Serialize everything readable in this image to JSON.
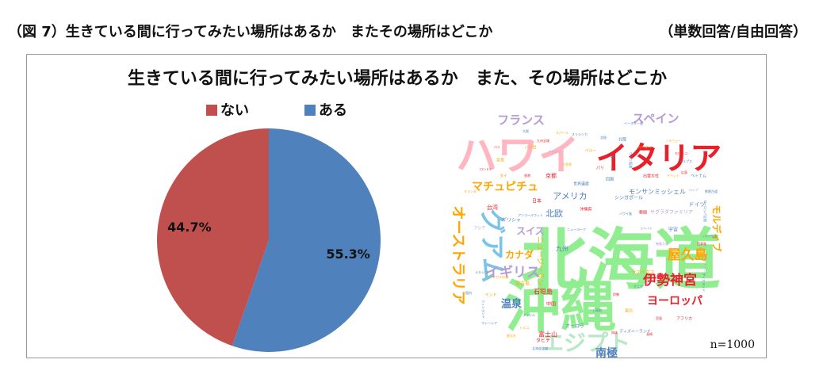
{
  "figure": {
    "caption": "（図 7）生きている間に行ってみたい場所はあるか　またその場所はどこか",
    "note": "（単数回答/自由回答）"
  },
  "chart_data": [
    {
      "type": "pie",
      "title": "生きている間に行ってみたい場所はあるか　また、その場所はどこか",
      "legend_position": "top",
      "slices": [
        {
          "label": "ない",
          "value": 44.7,
          "display": "44.7%",
          "color": "#C0504D"
        },
        {
          "label": "ある",
          "value": 55.3,
          "display": "55.3%",
          "color": "#4F81BD"
        }
      ],
      "start_direction": "12 o'clock",
      "order": "ある clockwise from top, then ない"
    },
    {
      "type": "wordcloud",
      "shape": "heart",
      "words": [
        {
          "text": "北海道",
          "weight": 100,
          "color": "#90EE90",
          "orient": "h"
        },
        {
          "text": "沖縄",
          "weight": 88,
          "color": "#90EE90",
          "orient": "h"
        },
        {
          "text": "ハワイ",
          "weight": 62,
          "color": "#FFB6C1",
          "orient": "h"
        },
        {
          "text": "イタリア",
          "weight": 50,
          "color": "#E8202A",
          "orient": "h"
        },
        {
          "text": "エジプト",
          "weight": 32,
          "color": "#B8E8C8",
          "orient": "h"
        },
        {
          "text": "グアム",
          "weight": 30,
          "color": "#7CC3E8",
          "orient": "v"
        },
        {
          "text": "オーストラリア",
          "weight": 18,
          "color": "#FFA500",
          "orient": "v"
        },
        {
          "text": "屋久島",
          "weight": 17,
          "color": "#FFA500",
          "orient": "h"
        },
        {
          "text": "伊勢神宮",
          "weight": 17,
          "color": "#E8202A",
          "orient": "h"
        },
        {
          "text": "イギリス",
          "weight": 17,
          "color": "#B59BD8",
          "orient": "h"
        },
        {
          "text": "フランス",
          "weight": 16,
          "color": "#B59BD8",
          "orient": "h"
        },
        {
          "text": "スペイン",
          "weight": 16,
          "color": "#B59BD8",
          "orient": "h"
        },
        {
          "text": "マチュピチュ",
          "weight": 15,
          "color": "#FFA500",
          "orient": "h"
        },
        {
          "text": "ヨーロッパ",
          "weight": 14,
          "color": "#E8202A",
          "orient": "h"
        },
        {
          "text": "南極",
          "weight": 14,
          "color": "#4F81BD",
          "orient": "h"
        },
        {
          "text": "温泉",
          "weight": 13,
          "color": "#4F81BD",
          "orient": "h"
        },
        {
          "text": "カナダ",
          "weight": 12,
          "color": "#FFA500",
          "orient": "h"
        },
        {
          "text": "スイス",
          "weight": 12,
          "color": "#B59BD8",
          "orient": "h"
        },
        {
          "text": "アメリカ",
          "weight": 11,
          "color": "#4F81BD",
          "orient": "h"
        },
        {
          "text": "北欧",
          "weight": 11,
          "color": "#4F81BD",
          "orient": "h"
        },
        {
          "text": "モルディブ",
          "weight": 12,
          "color": "#FFA500",
          "orient": "v"
        },
        {
          "text": "ニュージーランド",
          "weight": 9,
          "color": "#FFA500",
          "orient": "v"
        },
        {
          "text": "モンサンミッシェル",
          "weight": 8,
          "color": "#4F81BD",
          "orient": "h"
        },
        {
          "text": "富士山",
          "weight": 8,
          "color": "#E8202A",
          "orient": "h"
        },
        {
          "text": "石垣島",
          "weight": 8,
          "color": "#E8202A",
          "orient": "h"
        },
        {
          "text": "九州",
          "weight": 8,
          "color": "#4F81BD",
          "orient": "h"
        },
        {
          "text": "ドイツ",
          "weight": 7,
          "color": "#4F81BD",
          "orient": "h"
        },
        {
          "text": "シンガポール",
          "weight": 6,
          "color": "#4F81BD",
          "orient": "h"
        },
        {
          "text": "台湾",
          "weight": 7,
          "color": "#E8202A",
          "orient": "h"
        },
        {
          "text": "京都",
          "weight": 7,
          "color": "#E8202A",
          "orient": "h"
        },
        {
          "text": "中国",
          "weight": 6,
          "color": "#E8202A",
          "orient": "h"
        },
        {
          "text": "宮古島",
          "weight": 6,
          "color": "#FFA500",
          "orient": "h"
        },
        {
          "text": "サグラダファミリア",
          "weight": 6,
          "color": "#B59BD8",
          "orient": "h"
        },
        {
          "text": "ラスベガス",
          "weight": 6,
          "color": "#FFA500",
          "orient": "h"
        },
        {
          "text": "ディズニーランド",
          "weight": 5,
          "color": "#4F81BD",
          "orient": "h"
        },
        {
          "text": "タヒチ",
          "weight": 6,
          "color": "#E8202A",
          "orient": "h"
        },
        {
          "text": "オーロラ",
          "weight": 6,
          "color": "#4F81BD",
          "orient": "h"
        },
        {
          "text": "ギリシャ",
          "weight": 6,
          "color": "#4F81BD",
          "orient": "h"
        },
        {
          "text": "日本",
          "weight": 6,
          "color": "#E8202A",
          "orient": "h"
        },
        {
          "text": "ペルー",
          "weight": 5,
          "color": "#FFA500",
          "orient": "h"
        },
        {
          "text": "世界遺産",
          "weight": 5,
          "color": "#4F81BD",
          "orient": "h"
        },
        {
          "text": "沖縄県",
          "weight": 5,
          "color": "#E8202A",
          "orient": "h"
        },
        {
          "text": "インド",
          "weight": 5,
          "color": "#FFA500",
          "orient": "h"
        },
        {
          "text": "宇宙",
          "weight": 6,
          "color": "#4F81BD",
          "orient": "h"
        },
        {
          "text": "韓国",
          "weight": 5,
          "color": "#E8202A",
          "orient": "h"
        },
        {
          "text": "四国",
          "weight": 5,
          "color": "#4F81BD",
          "orient": "h"
        },
        {
          "text": "東北",
          "weight": 5,
          "color": "#FFA500",
          "orient": "h"
        },
        {
          "text": "北陸",
          "weight": 5,
          "color": "#4F81BD",
          "orient": "h"
        },
        {
          "text": "奈良",
          "weight": 5,
          "color": "#FFA500",
          "orient": "h"
        },
        {
          "text": "パリ",
          "weight": 5,
          "color": "#E8202A",
          "orient": "h"
        },
        {
          "text": "ベトナム",
          "weight": 5,
          "color": "#4F81BD",
          "orient": "h"
        },
        {
          "text": "タイ",
          "weight": 5,
          "color": "#FFA500",
          "orient": "h"
        },
        {
          "text": "バリ島",
          "weight": 5,
          "color": "#FFA500",
          "orient": "h"
        },
        {
          "text": "アフリカ",
          "weight": 5,
          "color": "#E8202A",
          "orient": "h"
        },
        {
          "text": "出雲大社",
          "weight": 5,
          "color": "#E8202A",
          "orient": "h"
        },
        {
          "text": "ロシア",
          "weight": 5,
          "color": "#B59BD8",
          "orient": "h"
        },
        {
          "text": "ハワイ島",
          "weight": 4,
          "color": "#4F81BD",
          "orient": "h"
        },
        {
          "text": "ブラジル",
          "weight": 4,
          "color": "#4F81BD",
          "orient": "h"
        },
        {
          "text": "イースター島",
          "weight": 4,
          "color": "#4F81BD",
          "orient": "h"
        },
        {
          "text": "アラスカ",
          "weight": 4,
          "color": "#B59BD8",
          "orient": "h"
        },
        {
          "text": "ニューヨーク",
          "weight": 4,
          "color": "#4F81BD",
          "orient": "h"
        },
        {
          "text": "広島",
          "weight": 4,
          "color": "#E8202A",
          "orient": "h"
        },
        {
          "text": "アジア",
          "weight": 4,
          "color": "#B59BD8",
          "orient": "h"
        },
        {
          "text": "海外",
          "weight": 5,
          "color": "#4F81BD",
          "orient": "h"
        },
        {
          "text": "小笠原",
          "weight": 4,
          "color": "#FFA500",
          "orient": "h"
        },
        {
          "text": "メキシコ",
          "weight": 4,
          "color": "#4F81BD",
          "orient": "h"
        },
        {
          "text": "トルコ",
          "weight": 4,
          "color": "#FFA500",
          "orient": "h"
        },
        {
          "text": "香港",
          "weight": 4,
          "color": "#E8202A",
          "orient": "h"
        },
        {
          "text": "熊野古道",
          "weight": 4,
          "color": "#4F81BD",
          "orient": "h"
        },
        {
          "text": "オランダ",
          "weight": 4,
          "color": "#FFA500",
          "orient": "h"
        },
        {
          "text": "フィンランド",
          "weight": 4,
          "color": "#4F81BD",
          "orient": "v"
        },
        {
          "text": "ウユニ塩湖",
          "weight": 4,
          "color": "#4F81BD",
          "orient": "v"
        },
        {
          "text": "アイスランド",
          "weight": 4,
          "color": "#4F81BD",
          "orient": "v"
        },
        {
          "text": "ノルウェー",
          "weight": 4,
          "color": "#FFA500",
          "orient": "h"
        },
        {
          "text": "北極",
          "weight": 4,
          "color": "#4F81BD",
          "orient": "h"
        },
        {
          "text": "宮島",
          "weight": 4,
          "color": "#E8202A",
          "orient": "h"
        },
        {
          "text": "九州全域",
          "weight": 4,
          "color": "#E8202A",
          "orient": "h"
        },
        {
          "text": "バリ",
          "weight": 4,
          "color": "#E8202A",
          "orient": "h"
        },
        {
          "text": "アルプス",
          "weight": 4,
          "color": "#4F81BD",
          "orient": "h"
        },
        {
          "text": "ヨーロッパ全般",
          "weight": 4,
          "color": "#4F81BD",
          "orient": "v"
        },
        {
          "text": "ナイアガラの滝",
          "weight": 4,
          "color": "#FFA500",
          "orient": "h"
        },
        {
          "text": "奄美大島",
          "weight": 4,
          "color": "#B59BD8",
          "orient": "h"
        },
        {
          "text": "知床",
          "weight": 4,
          "color": "#E8202A",
          "orient": "h"
        },
        {
          "text": "大阪",
          "weight": 4,
          "color": "#4F81BD",
          "orient": "h"
        },
        {
          "text": "ローマ",
          "weight": 4,
          "color": "#FFA500",
          "orient": "h"
        },
        {
          "text": "スコットランド",
          "weight": 4,
          "color": "#B59BD8",
          "orient": "v"
        },
        {
          "text": "国内",
          "weight": 4,
          "color": "#4F81BD",
          "orient": "h"
        },
        {
          "text": "長崎",
          "weight": 4,
          "color": "#E8202A",
          "orient": "h"
        },
        {
          "text": "北海道全域",
          "weight": 4,
          "color": "#4F81BD",
          "orient": "h"
        },
        {
          "text": "ケニア",
          "weight": 4,
          "color": "#4F81BD",
          "orient": "h"
        },
        {
          "text": "ロンドン",
          "weight": 4,
          "color": "#E8202A",
          "orient": "h"
        },
        {
          "text": "屋久杉",
          "weight": 4,
          "color": "#FFA500",
          "orient": "h"
        },
        {
          "text": "スリランカ",
          "weight": 4,
          "color": "#4F81BD",
          "orient": "h"
        },
        {
          "text": "西表島",
          "weight": 4,
          "color": "#E8202A",
          "orient": "h"
        },
        {
          "text": "マレーシア",
          "weight": 4,
          "color": "#4F81BD",
          "orient": "h"
        },
        {
          "text": "アンコールワット",
          "weight": 4,
          "color": "#4F81BD",
          "orient": "h"
        },
        {
          "text": "チベット",
          "weight": 4,
          "color": "#FFA500",
          "orient": "h"
        },
        {
          "text": "上高地",
          "weight": 4,
          "color": "#4F81BD",
          "orient": "h"
        },
        {
          "text": "モロッコ",
          "weight": 4,
          "color": "#E8202A",
          "orient": "h"
        },
        {
          "text": "ネパール",
          "weight": 4,
          "color": "#FFA500",
          "orient": "h"
        },
        {
          "text": "伊勢",
          "weight": 4,
          "color": "#E8202A",
          "orient": "h"
        },
        {
          "text": "イタリア全般",
          "weight": 3,
          "color": "#4F81BD",
          "orient": "h"
        },
        {
          "text": "エベレスト",
          "weight": 3,
          "color": "#4F81BD",
          "orient": "h"
        }
      ]
    }
  ],
  "sample_size": "n=1000"
}
